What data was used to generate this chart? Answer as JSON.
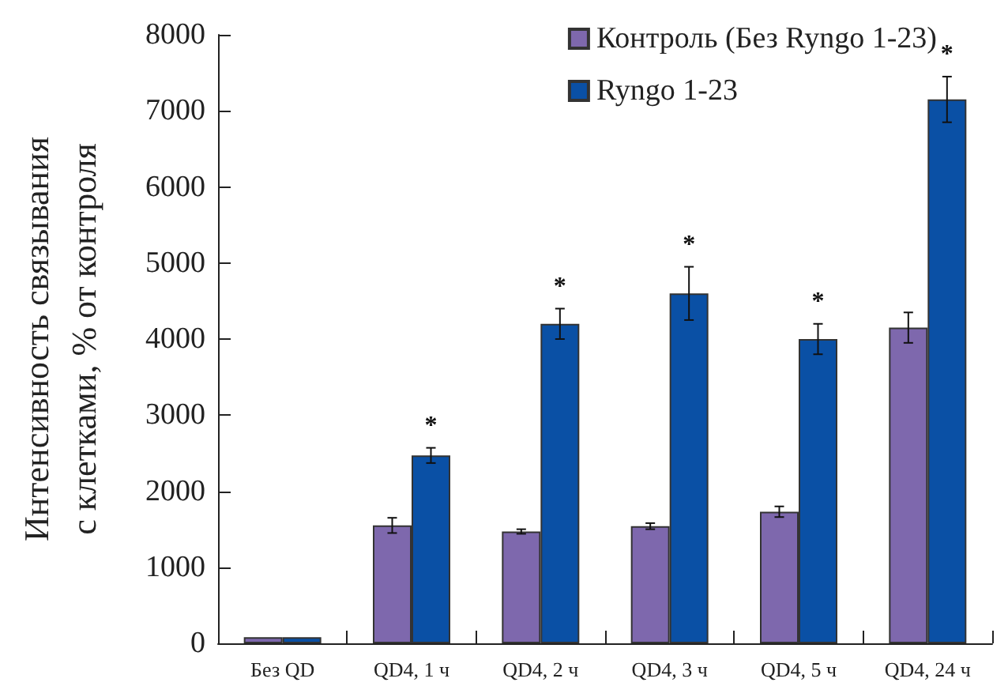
{
  "chart_data": {
    "type": "bar",
    "ylabel": "Интенсивность связывания\nс клетками, % от контроля",
    "categories": [
      "Без QD",
      "QD4, 1 ч",
      "QD4, 2 ч",
      "QD4, 3 ч",
      "QD4, 5 ч",
      "QD4, 24 ч"
    ],
    "series": [
      {
        "name": "Контроль (Без Ryngo 1-23)",
        "color": "#7e68ad",
        "values": [
          80,
          1550,
          1470,
          1540,
          1730,
          4150
        ],
        "errors": [
          null,
          100,
          30,
          40,
          70,
          200
        ]
      },
      {
        "name": "Ryngo 1-23",
        "color": "#0a50a5",
        "values": [
          80,
          2470,
          4200,
          4600,
          4000,
          7150
        ],
        "errors": [
          null,
          100,
          200,
          350,
          200,
          300
        ]
      }
    ],
    "ylim": [
      0,
      8000
    ],
    "yticks": [
      0,
      1000,
      2000,
      3000,
      4000,
      5000,
      6000,
      7000,
      8000
    ],
    "grid": false,
    "legend": "top right",
    "annotations": [
      "*",
      "*",
      "*",
      "*",
      "*"
    ]
  }
}
